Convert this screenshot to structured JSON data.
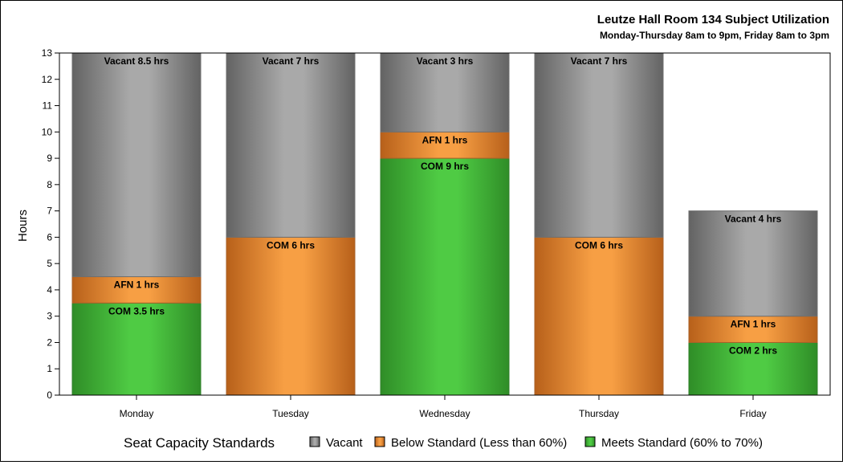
{
  "chart_data": {
    "type": "bar",
    "stacked": true,
    "title": "Leutze Hall Room 134 Subject Utilization",
    "subtitle": "Monday-Thursday 8am to 9pm, Friday 8am to 3pm",
    "xlabel": "",
    "ylabel": "Hours",
    "ylim": [
      0,
      13
    ],
    "yticks": [
      "0",
      "1",
      "2",
      "3",
      "4",
      "5",
      "6",
      "7",
      "8",
      "9",
      "10",
      "11",
      "12",
      "13"
    ],
    "grid": false,
    "categories": [
      "Monday",
      "Tuesday",
      "Wednesday",
      "Thursday",
      "Friday"
    ],
    "bars": [
      {
        "category": "Monday",
        "segments": [
          {
            "status": "meets",
            "value": 3.5,
            "label": "COM 3.5 hrs"
          },
          {
            "status": "below",
            "value": 1,
            "label": "AFN 1 hrs"
          },
          {
            "status": "vacant",
            "value": 8.5,
            "label": "Vacant 8.5 hrs"
          }
        ]
      },
      {
        "category": "Tuesday",
        "segments": [
          {
            "status": "below",
            "value": 6,
            "label": "COM 6 hrs"
          },
          {
            "status": "vacant",
            "value": 7,
            "label": "Vacant 7 hrs"
          }
        ]
      },
      {
        "category": "Wednesday",
        "segments": [
          {
            "status": "meets",
            "value": 9,
            "label": "COM 9 hrs"
          },
          {
            "status": "below",
            "value": 1,
            "label": "AFN 1 hrs"
          },
          {
            "status": "vacant",
            "value": 3,
            "label": "Vacant 3 hrs"
          }
        ]
      },
      {
        "category": "Thursday",
        "segments": [
          {
            "status": "below",
            "value": 6,
            "label": "COM 6 hrs"
          },
          {
            "status": "vacant",
            "value": 7,
            "label": "Vacant 7 hrs"
          }
        ]
      },
      {
        "category": "Friday",
        "segments": [
          {
            "status": "meets",
            "value": 2,
            "label": "COM 2 hrs"
          },
          {
            "status": "below",
            "value": 1,
            "label": "AFN 1 hrs"
          },
          {
            "status": "vacant",
            "value": 4,
            "label": "Vacant 4 hrs"
          }
        ]
      }
    ],
    "legend": {
      "title": "Seat Capacity Standards",
      "placement": "bottom",
      "items": [
        {
          "status": "vacant",
          "label": "Vacant"
        },
        {
          "status": "below",
          "label": "Below Standard (Less than 60%)"
        },
        {
          "status": "meets",
          "label": "Meets Standard (60% to 70%)"
        }
      ]
    },
    "colors": {
      "vacant": {
        "mid": "#a9a9a9",
        "edge": "#636363",
        "stroke": "#6f6f6f"
      },
      "below": {
        "mid": "#f79f44",
        "edge": "#b7601a",
        "stroke": "#a9612a"
      },
      "meets": {
        "mid": "#4fcb44",
        "edge": "#2f8d27",
        "stroke": "#2f7f2a"
      }
    }
  }
}
